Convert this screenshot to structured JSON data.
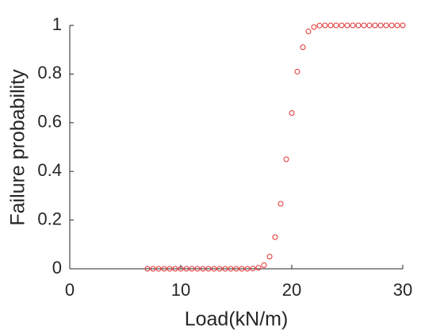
{
  "chart_data": {
    "type": "scatter",
    "x_label": "Load(kN/m)",
    "y_label": "Failure probability",
    "x": [
      7,
      7.5,
      8,
      8.5,
      9,
      9.5,
      10,
      10.5,
      11,
      11.5,
      12,
      12.5,
      13,
      13.5,
      14,
      14.5,
      15,
      15.5,
      16,
      16.5,
      17,
      17.5,
      18,
      18.5,
      19,
      19.5,
      20,
      20.5,
      21,
      21.5,
      22,
      22.5,
      23,
      23.5,
      24,
      24.5,
      25,
      25.5,
      26,
      26.5,
      27,
      27.5,
      28,
      28.5,
      29,
      29.5,
      30
    ],
    "values": [
      0,
      0,
      0,
      0,
      0,
      0,
      0,
      0,
      0,
      0,
      0,
      0,
      0,
      0,
      0,
      0,
      0,
      0,
      0,
      0.001,
      0.004,
      0.015,
      0.05,
      0.13,
      0.267,
      0.45,
      0.64,
      0.81,
      0.91,
      0.975,
      0.993,
      0.999,
      1,
      1,
      1,
      1,
      1,
      1,
      1,
      1,
      1,
      1,
      1,
      1,
      1,
      1,
      1
    ],
    "color": "#e03030",
    "xlim": [
      0,
      30
    ],
    "xticks": [
      0,
      10,
      20,
      30
    ],
    "ylim": [
      0,
      1
    ],
    "yticks": [
      0,
      0.2,
      0.4,
      0.6,
      0.8,
      1
    ]
  }
}
